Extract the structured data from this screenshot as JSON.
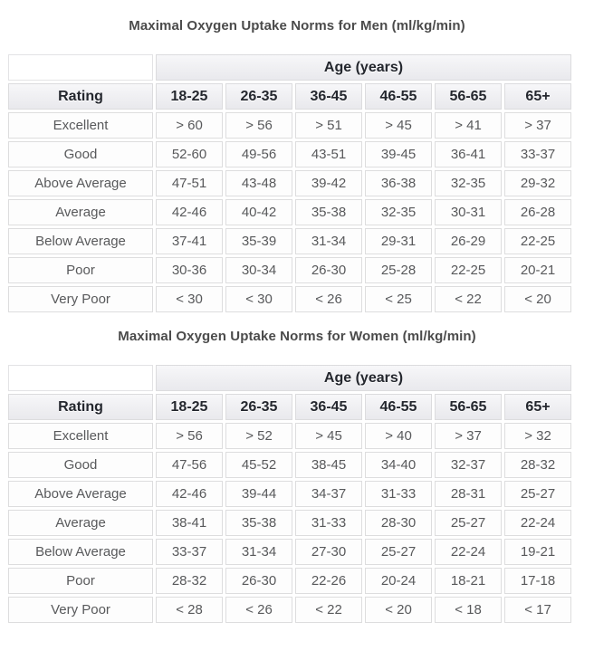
{
  "colors": {
    "page_background": "#ffffff",
    "title_text": "#4b4b4b",
    "header_text": "#24272e",
    "header_gradient_top": "#f7f7f9",
    "header_gradient_bottom": "#e9e9ed",
    "cell_border": "#dddddd",
    "body_text": "#58595b",
    "cell_background": "#fdfdfd"
  },
  "tables": [
    {
      "title": "Maximal Oxygen Uptake Norms for Men (ml/kg/min)",
      "age_header": "Age (years)",
      "rating_header": "Rating",
      "age_columns": [
        "18-25",
        "26-35",
        "36-45",
        "46-55",
        "56-65",
        "65+"
      ],
      "rows": [
        {
          "rating": "Excellent",
          "values": [
            "> 60",
            "> 56",
            "> 51",
            "> 45",
            "> 41",
            "> 37"
          ]
        },
        {
          "rating": "Good",
          "values": [
            "52-60",
            "49-56",
            "43-51",
            "39-45",
            "36-41",
            "33-37"
          ]
        },
        {
          "rating": "Above Average",
          "values": [
            "47-51",
            "43-48",
            "39-42",
            "36-38",
            "32-35",
            "29-32"
          ]
        },
        {
          "rating": "Average",
          "values": [
            "42-46",
            "40-42",
            "35-38",
            "32-35",
            "30-31",
            "26-28"
          ]
        },
        {
          "rating": "Below Average",
          "values": [
            "37-41",
            "35-39",
            "31-34",
            "29-31",
            "26-29",
            "22-25"
          ]
        },
        {
          "rating": "Poor",
          "values": [
            "30-36",
            "30-34",
            "26-30",
            "25-28",
            "22-25",
            "20-21"
          ]
        },
        {
          "rating": "Very Poor",
          "values": [
            "< 30",
            "< 30",
            "< 26",
            "< 25",
            "< 22",
            "< 20"
          ]
        }
      ]
    },
    {
      "title": "Maximal Oxygen Uptake Norms for Women (ml/kg/min)",
      "age_header": "Age (years)",
      "rating_header": "Rating",
      "age_columns": [
        "18-25",
        "26-35",
        "36-45",
        "46-55",
        "56-65",
        "65+"
      ],
      "rows": [
        {
          "rating": "Excellent",
          "values": [
            "> 56",
            "> 52",
            "> 45",
            "> 40",
            "> 37",
            "> 32"
          ]
        },
        {
          "rating": "Good",
          "values": [
            "47-56",
            "45-52",
            "38-45",
            "34-40",
            "32-37",
            "28-32"
          ]
        },
        {
          "rating": "Above Average",
          "values": [
            "42-46",
            "39-44",
            "34-37",
            "31-33",
            "28-31",
            "25-27"
          ]
        },
        {
          "rating": "Average",
          "values": [
            "38-41",
            "35-38",
            "31-33",
            "28-30",
            "25-27",
            "22-24"
          ]
        },
        {
          "rating": "Below Average",
          "values": [
            "33-37",
            "31-34",
            "27-30",
            "25-27",
            "22-24",
            "19-21"
          ]
        },
        {
          "rating": "Poor",
          "values": [
            "28-32",
            "26-30",
            "22-26",
            "20-24",
            "18-21",
            "17-18"
          ]
        },
        {
          "rating": "Very Poor",
          "values": [
            "< 28",
            "< 26",
            "< 22",
            "< 20",
            "< 18",
            "< 17"
          ]
        }
      ]
    }
  ]
}
